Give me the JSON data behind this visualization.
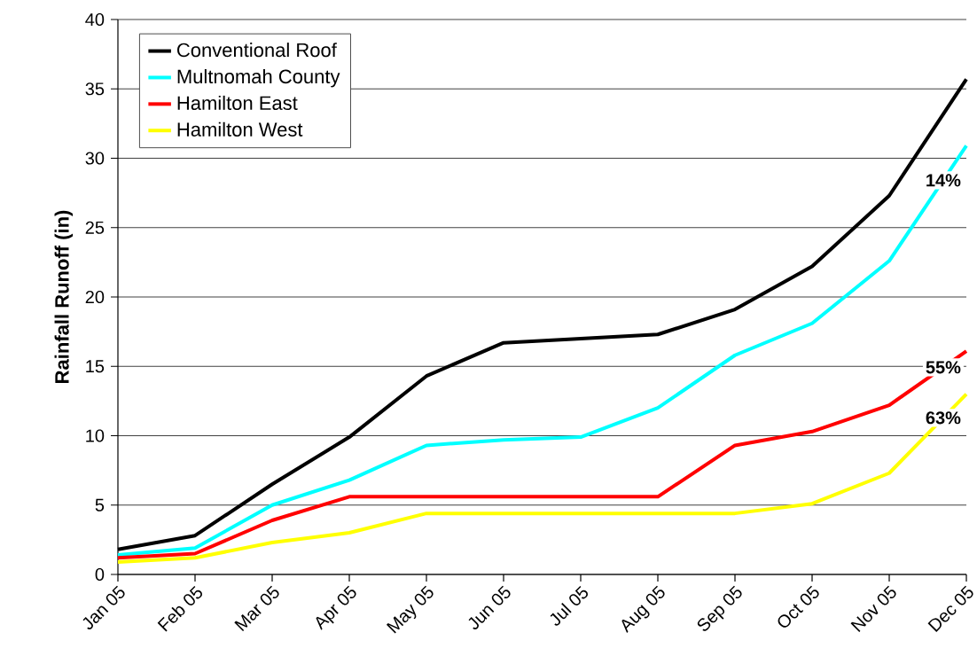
{
  "chart_data": {
    "type": "line",
    "ylabel": "Rainfall Runoff (in)",
    "categories": [
      "Jan 05",
      "Feb 05",
      "Mar 05",
      "Apr 05",
      "May 05",
      "Jun 05",
      "Jul 05",
      "Aug 05",
      "Sep 05",
      "Oct 05",
      "Nov 05",
      "Dec 05"
    ],
    "series": [
      {
        "name": "Conventional Roof",
        "color": "#000000",
        "values": [
          1.8,
          2.8,
          6.5,
          9.9,
          14.3,
          16.7,
          17.0,
          17.3,
          19.1,
          22.2,
          27.3,
          35.7
        ]
      },
      {
        "name": "Multnomah County",
        "color": "#00ffff",
        "values": [
          1.4,
          1.9,
          5.0,
          6.8,
          9.3,
          9.7,
          9.9,
          12.0,
          15.8,
          18.1,
          22.6,
          30.9
        ]
      },
      {
        "name": "Hamilton East",
        "color": "#ff0000",
        "values": [
          1.2,
          1.5,
          3.9,
          5.6,
          5.6,
          5.6,
          5.6,
          5.6,
          9.3,
          10.3,
          12.2,
          16.1
        ]
      },
      {
        "name": "Hamilton West",
        "color": "#ffff00",
        "values": [
          0.9,
          1.2,
          2.3,
          3.0,
          4.4,
          4.4,
          4.4,
          4.4,
          4.4,
          5.1,
          7.3,
          13.0
        ]
      }
    ],
    "annotations": [
      "14%",
      "55%",
      "63%"
    ],
    "ylim": [
      0,
      40
    ],
    "yticks": [
      0,
      5,
      10,
      15,
      20,
      25,
      30,
      35,
      40
    ],
    "grid": "y",
    "legend": "top left",
    "line_style": "solid",
    "marker": "none"
  }
}
